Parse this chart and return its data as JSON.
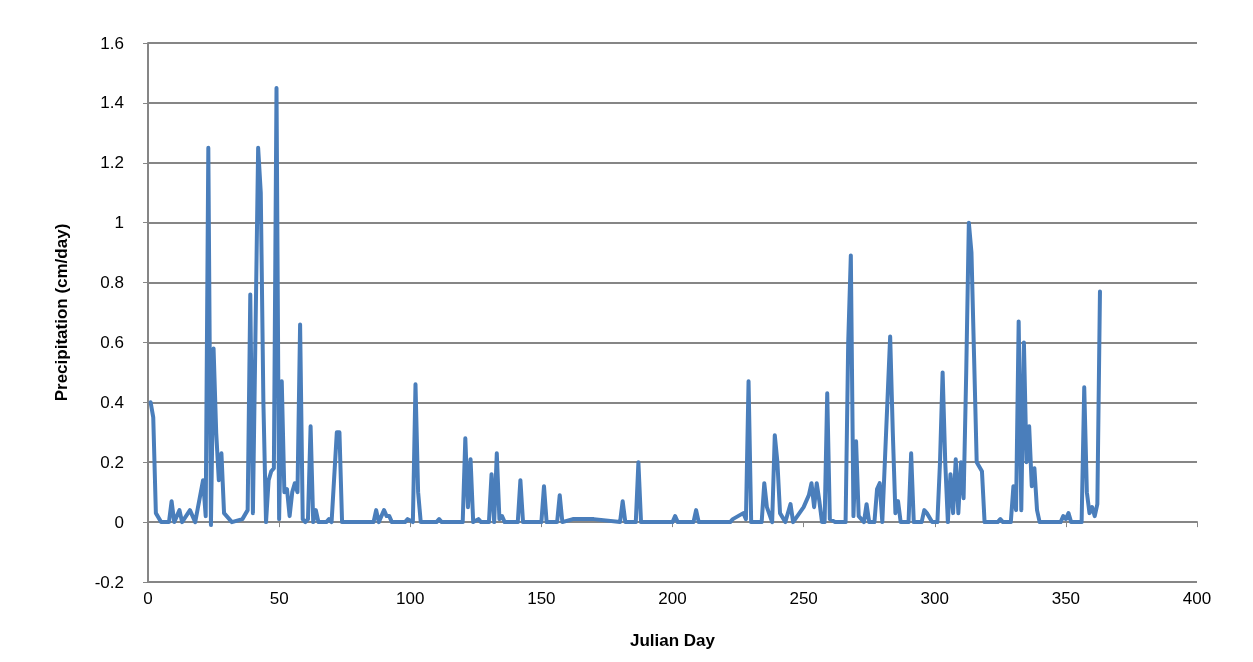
{
  "chart_data": {
    "type": "line",
    "xlabel": "Julian Day",
    "ylabel": "Precipitation (cm/day)",
    "x": [
      1,
      2,
      3,
      5,
      8,
      9,
      10,
      12,
      13,
      16,
      18,
      21,
      22,
      23,
      24,
      25,
      26,
      27,
      28,
      29,
      30,
      32,
      36,
      38,
      39,
      40,
      42,
      43,
      44,
      45,
      46,
      47,
      48,
      49,
      50,
      51,
      52,
      53,
      54,
      55,
      56,
      57,
      58,
      59,
      60,
      61,
      62,
      63,
      64,
      65,
      68,
      69,
      70,
      72,
      73,
      74,
      86,
      87,
      88,
      90,
      91,
      92,
      93,
      98,
      99,
      101,
      102,
      103,
      104,
      110,
      111,
      112,
      120,
      121,
      122,
      123,
      124,
      126,
      127,
      130,
      131,
      132,
      133,
      134,
      135,
      136,
      141,
      142,
      143,
      150,
      151,
      152,
      156,
      157,
      158,
      162,
      168,
      170,
      180,
      181,
      182,
      186,
      187,
      188,
      200,
      201,
      202,
      208,
      209,
      210,
      222,
      223,
      225,
      227,
      228,
      229,
      230,
      234,
      235,
      236,
      238,
      239,
      240,
      241,
      243,
      245,
      246,
      250,
      252,
      253,
      254,
      255,
      256,
      257,
      258,
      259,
      260,
      262,
      266,
      267,
      268,
      269,
      270,
      271,
      273,
      274,
      275,
      277,
      278,
      279,
      280,
      283,
      284,
      285,
      286,
      287,
      290,
      291,
      292,
      295,
      296,
      297,
      299,
      301,
      302,
      303,
      304,
      305,
      306,
      307,
      308,
      309,
      310,
      311,
      312,
      313,
      314,
      315,
      316,
      318,
      319,
      324,
      325,
      326,
      329,
      330,
      331,
      332,
      333,
      334,
      335,
      336,
      337,
      338,
      339,
      340,
      348,
      349,
      350,
      351,
      352,
      356,
      357,
      358,
      359,
      360,
      361,
      362,
      363
    ],
    "series": [
      {
        "color": "#4a7ebb",
        "values": [
          0.4,
          0.35,
          0.03,
          0,
          0,
          0.07,
          0,
          0.04,
          0,
          0.04,
          0,
          0.14,
          0.02,
          1.25,
          -0.01,
          0.58,
          0.3,
          0.14,
          0.23,
          0.03,
          0.02,
          0,
          0.01,
          0.04,
          0.76,
          0.03,
          1.25,
          1.1,
          0.4,
          0,
          0.14,
          0.17,
          0.18,
          1.45,
          0.01,
          0.47,
          0.1,
          0.11,
          0.02,
          0.1,
          0.13,
          0.1,
          0.66,
          0.01,
          0,
          0.01,
          0.32,
          0,
          0.04,
          0,
          0,
          0.01,
          0,
          0.3,
          0.3,
          0,
          0,
          0.04,
          0,
          0.04,
          0.02,
          0.02,
          0,
          0,
          0.01,
          0,
          0.46,
          0.1,
          0,
          0,
          0.01,
          0,
          0,
          0.28,
          0.05,
          0.21,
          0,
          0.01,
          0,
          0,
          0.16,
          0,
          0.23,
          0.01,
          0.02,
          0,
          0,
          0.14,
          0,
          0,
          0.12,
          0,
          0,
          0.09,
          0,
          0.01,
          0.01,
          0.01,
          0,
          0.07,
          0,
          0,
          0.2,
          0,
          0,
          0.02,
          0,
          0,
          0.04,
          0,
          0,
          0.01,
          0.02,
          0.03,
          0.01,
          0.47,
          0,
          0,
          0.13,
          0.05,
          0,
          0.29,
          0.2,
          0.03,
          0,
          0.06,
          0,
          0.05,
          0.09,
          0.13,
          0.05,
          0.13,
          0.07,
          0,
          0,
          0.43,
          0.01,
          0,
          0,
          0.6,
          0.89,
          0.02,
          0.27,
          0.02,
          0,
          0.06,
          0,
          0,
          0.11,
          0.13,
          0,
          0.62,
          0.3,
          0.03,
          0.07,
          0,
          0,
          0.23,
          0,
          0,
          0.04,
          0.03,
          0,
          0,
          0.2,
          0.5,
          0.2,
          0,
          0.16,
          0.03,
          0.21,
          0.03,
          0.2,
          0.08,
          0.5,
          1.0,
          0.9,
          0.55,
          0.2,
          0.17,
          0,
          0,
          0.01,
          0,
          0,
          0.12,
          0.04,
          0.67,
          0.04,
          0.6,
          0.2,
          0.32,
          0.12,
          0.18,
          0.04,
          0,
          0,
          0.02,
          0.01,
          0.03,
          0,
          0,
          0.45,
          0.1,
          0.03,
          0.05,
          0.02,
          0.06,
          0.77
        ]
      }
    ],
    "xlim": [
      0,
      400
    ],
    "xticks": [
      0,
      50,
      100,
      150,
      200,
      250,
      300,
      350,
      400
    ],
    "ylim": [
      -0.2,
      1.6
    ],
    "yticks": [
      -0.2,
      0,
      0.2,
      0.4,
      0.6,
      0.8,
      1,
      1.2,
      1.4,
      1.6
    ],
    "grid": "y",
    "marker": "none",
    "line_style": "solid"
  }
}
